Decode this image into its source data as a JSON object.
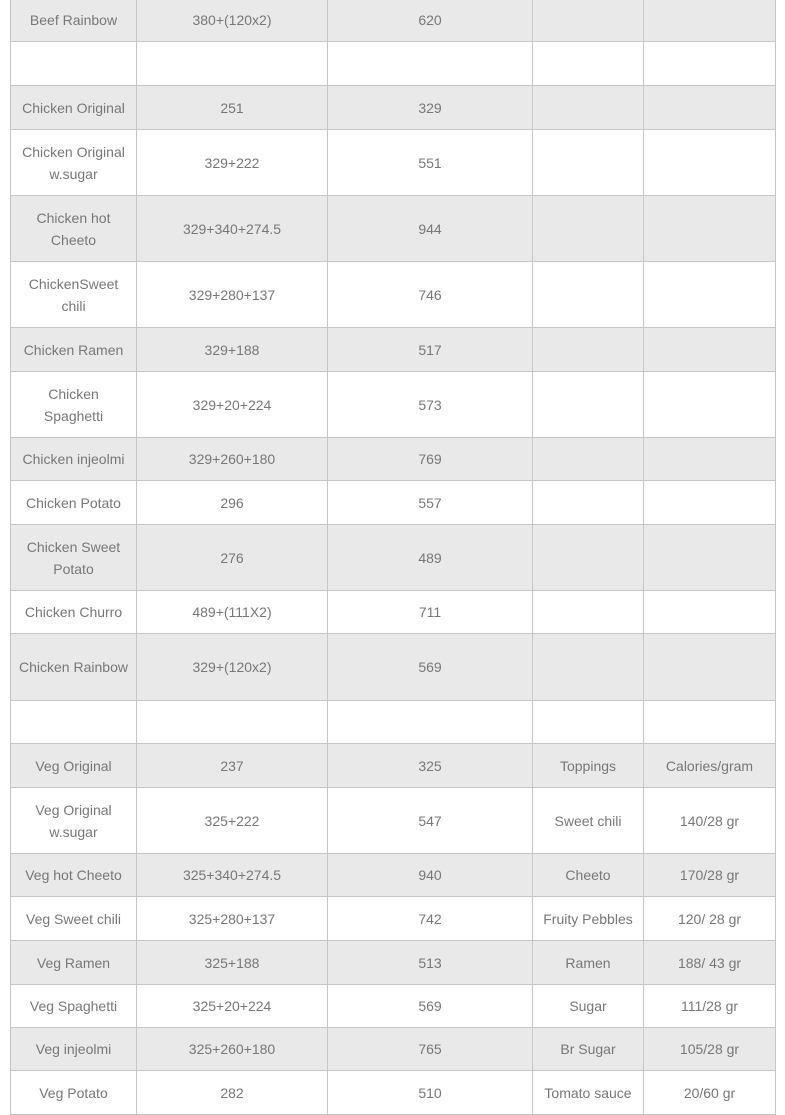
{
  "table": {
    "rows": [
      [
        "Beef Rainbow",
        "380+(120x2)",
        "620",
        "",
        ""
      ],
      [
        "",
        "",
        "",
        "",
        ""
      ],
      [
        "Chicken Original",
        "251",
        "329",
        "",
        ""
      ],
      [
        "Chicken Original w.sugar",
        "329+222",
        "551",
        "",
        ""
      ],
      [
        "Chicken hot Cheeto",
        "329+340+274.5",
        "944",
        "",
        ""
      ],
      [
        "ChickenSweet chili",
        "329+280+137",
        "746",
        "",
        ""
      ],
      [
        "Chicken Ramen",
        "329+188",
        "517",
        "",
        ""
      ],
      [
        "Chicken Spaghetti",
        "329+20+224",
        "573",
        "",
        ""
      ],
      [
        "Chicken injeolmi",
        "329+260+180",
        "769",
        "",
        ""
      ],
      [
        "Chicken Potato",
        "296",
        "557",
        "",
        ""
      ],
      [
        "Chicken Sweet Potato",
        "276",
        "489",
        "",
        ""
      ],
      [
        "Chicken Churro",
        "489+(111X2)",
        "711",
        "",
        ""
      ],
      [
        "Chicken Rainbow",
        "329+(120x2)",
        "569",
        "",
        ""
      ],
      [
        "",
        "",
        "",
        "",
        ""
      ],
      [
        "Veg Original",
        "237",
        "325",
        "Toppings",
        "Calories/gram"
      ],
      [
        "Veg Original w.sugar",
        "325+222",
        "547",
        "Sweet chili",
        "140/28 gr"
      ],
      [
        "Veg hot Cheeto",
        "325+340+274.5",
        "940",
        "Cheeto",
        "170/28 gr"
      ],
      [
        "Veg Sweet chili",
        "325+280+137",
        "742",
        "Fruity Pebbles",
        "120/ 28 gr"
      ],
      [
        "Veg Ramen",
        "325+188",
        "513",
        "Ramen",
        "188/ 43 gr"
      ],
      [
        "Veg Spaghetti",
        "325+20+224",
        "569",
        "Sugar",
        "111/28 gr"
      ],
      [
        "Veg injeolmi",
        "325+260+180",
        "765",
        "Br Sugar",
        "105/28 gr"
      ],
      [
        "Veg Potato",
        "282",
        "510",
        "Tomato sauce",
        "20/60 gr"
      ]
    ]
  }
}
